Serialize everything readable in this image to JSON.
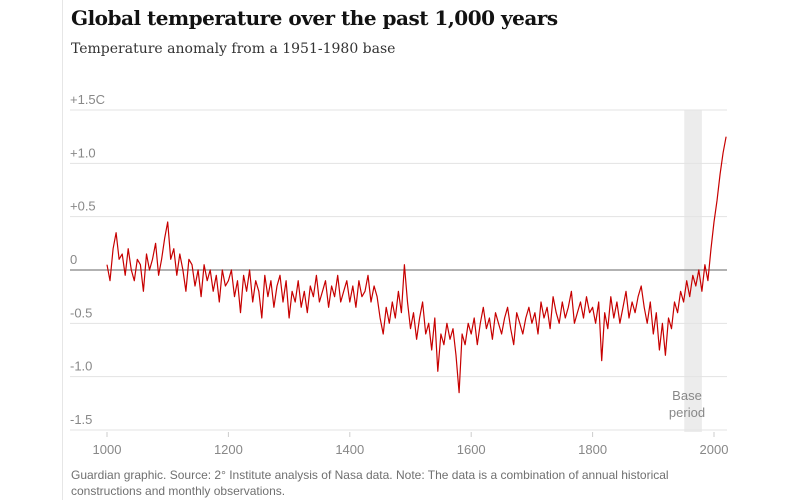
{
  "title": "Global temperature over the past 1,000 years",
  "subtitle": "Temperature anomaly from a 1951-1980 base",
  "footer": "Guardian graphic. Source: 2° Institute analysis of Nasa data. Note: The data is a combination of annual historical constructions and monthly observations.",
  "chart_data": {
    "type": "line",
    "title": "Global temperature over the past 1,000 years",
    "subtitle": "Temperature anomaly from a 1951-1980 base",
    "xlim": [
      970,
      2030
    ],
    "ylim": [
      -1.5,
      1.5
    ],
    "x_ticks": [
      1000,
      1200,
      1400,
      1600,
      1800,
      2000
    ],
    "x_tick_labels": [
      "1000",
      "1200",
      "1400",
      "1600",
      "1800",
      "2000"
    ],
    "y_ticks": [
      1.5,
      1.0,
      0.5,
      0,
      -0.5,
      -1.0,
      -1.5
    ],
    "y_tick_labels": [
      "+1.5C",
      "+1.0",
      "+0.5",
      "0",
      "-0.5",
      "-1.0",
      "-1.5"
    ],
    "grid": true,
    "line_color": "#c70000",
    "base_period": {
      "label_line1": "Base",
      "label_line2": "period",
      "start": 1951,
      "end": 1980,
      "color": "#ececec"
    },
    "series": [
      {
        "start_year": 1000,
        "step_years": 5,
        "values": [
          0.05,
          -0.1,
          0.2,
          0.35,
          0.1,
          0.15,
          -0.05,
          0.2,
          0.0,
          -0.1,
          0.1,
          0.05,
          -0.2,
          0.15,
          0.0,
          0.1,
          0.25,
          -0.05,
          0.1,
          0.3,
          0.45,
          0.1,
          0.2,
          -0.05,
          0.15,
          0.0,
          -0.2,
          0.1,
          0.05,
          -0.15,
          0.0,
          -0.25,
          0.05,
          -0.1,
          0.0,
          -0.2,
          -0.05,
          -0.3,
          0.0,
          -0.15,
          -0.1,
          0.0,
          -0.25,
          -0.1,
          -0.4,
          -0.05,
          -0.2,
          0.0,
          -0.3,
          -0.1,
          -0.2,
          -0.45,
          -0.05,
          -0.25,
          -0.1,
          -0.35,
          -0.15,
          -0.05,
          -0.3,
          -0.1,
          -0.45,
          -0.2,
          -0.3,
          -0.1,
          -0.35,
          -0.2,
          -0.4,
          -0.15,
          -0.25,
          -0.05,
          -0.3,
          -0.2,
          -0.1,
          -0.35,
          -0.15,
          -0.25,
          -0.05,
          -0.3,
          -0.2,
          -0.1,
          -0.3,
          -0.15,
          -0.35,
          -0.1,
          -0.25,
          -0.2,
          -0.05,
          -0.3,
          -0.15,
          -0.25,
          -0.45,
          -0.6,
          -0.35,
          -0.5,
          -0.3,
          -0.45,
          -0.2,
          -0.4,
          0.05,
          -0.3,
          -0.55,
          -0.4,
          -0.65,
          -0.45,
          -0.3,
          -0.6,
          -0.5,
          -0.75,
          -0.45,
          -0.95,
          -0.6,
          -0.7,
          -0.5,
          -0.65,
          -0.55,
          -0.8,
          -1.15,
          -0.6,
          -0.7,
          -0.5,
          -0.6,
          -0.45,
          -0.7,
          -0.5,
          -0.35,
          -0.55,
          -0.45,
          -0.65,
          -0.4,
          -0.5,
          -0.6,
          -0.45,
          -0.35,
          -0.55,
          -0.7,
          -0.4,
          -0.5,
          -0.6,
          -0.45,
          -0.35,
          -0.5,
          -0.4,
          -0.6,
          -0.3,
          -0.45,
          -0.35,
          -0.55,
          -0.25,
          -0.4,
          -0.5,
          -0.3,
          -0.45,
          -0.35,
          -0.2,
          -0.5,
          -0.4,
          -0.3,
          -0.45,
          -0.25,
          -0.4,
          -0.35,
          -0.5,
          -0.3,
          -0.85,
          -0.4,
          -0.55,
          -0.25,
          -0.45,
          -0.3,
          -0.5,
          -0.35,
          -0.2,
          -0.45,
          -0.3,
          -0.4,
          -0.25,
          -0.15,
          -0.35,
          -0.5,
          -0.3,
          -0.6,
          -0.4,
          -0.75,
          -0.5,
          -0.8,
          -0.45,
          -0.55,
          -0.3,
          -0.4,
          -0.2,
          -0.3,
          -0.1,
          -0.25,
          -0.05,
          -0.15,
          0.0,
          -0.2,
          0.05,
          -0.1,
          0.2,
          0.45,
          0.65,
          0.9,
          1.1,
          1.25
        ]
      }
    ]
  }
}
